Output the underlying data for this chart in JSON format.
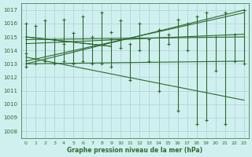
{
  "xlabel": "Graphe pression niveau de la mer (hPa)",
  "ylim": [
    1007.5,
    1017.5
  ],
  "xlim": [
    -0.5,
    23.5
  ],
  "yticks": [
    1008,
    1009,
    1010,
    1011,
    1012,
    1013,
    1014,
    1015,
    1016,
    1017
  ],
  "xticks": [
    0,
    1,
    2,
    3,
    4,
    5,
    6,
    7,
    8,
    9,
    10,
    11,
    12,
    13,
    14,
    15,
    16,
    17,
    18,
    19,
    20,
    21,
    22,
    23
  ],
  "bg_color": "#d0f0f0",
  "grid_color": "#b0d8d8",
  "line_color": "#2d6a2d",
  "bar_high": [
    1016.0,
    1015.8,
    1016.2,
    1014.8,
    1016.3,
    1015.3,
    1016.5,
    1015.0,
    1016.8,
    1014.8,
    1016.2,
    1014.5,
    1016.0,
    1014.8,
    1015.5,
    1015.2,
    1016.3,
    1016.0,
    1016.5,
    1016.8,
    1015.0,
    1016.8,
    1015.2,
    1017.0
  ],
  "bar_low": [
    1012.8,
    1013.0,
    1013.2,
    1013.0,
    1013.2,
    1013.0,
    1013.2,
    1013.0,
    1013.0,
    1012.8,
    1014.2,
    1011.8,
    1014.0,
    1013.2,
    1011.0,
    1014.5,
    1009.5,
    1014.0,
    1008.5,
    1008.8,
    1012.5,
    1008.5,
    1013.2,
    1013.0
  ],
  "trend_line1_x": [
    0,
    23
  ],
  "trend_line1_y": [
    1013.0,
    1017.0
  ],
  "trend_line2_x": [
    0,
    23
  ],
  "trend_line2_y": [
    1015.0,
    1015.0
  ],
  "trend_line3_x": [
    0,
    9,
    23
  ],
  "trend_line3_y": [
    1015.0,
    1014.3,
    1013.2
  ],
  "trend_line4_x": [
    0,
    9,
    23
  ],
  "trend_line4_y": [
    1013.0,
    1013.8,
    1010.3
  ],
  "trend_line5_x": [
    0,
    9,
    23
  ],
  "trend_line5_y": [
    1013.5,
    1013.5,
    1014.8
  ],
  "dot_x": [
    0,
    1,
    2,
    3,
    4,
    5,
    6,
    7,
    8,
    9,
    10,
    11,
    12,
    13,
    14,
    15,
    16,
    17,
    18,
    19,
    20,
    21,
    22,
    23
  ],
  "dot_high": [
    1016.0,
    1015.8,
    1016.2,
    1014.8,
    1016.3,
    1015.3,
    1016.5,
    1015.0,
    1016.8,
    1014.8,
    1016.2,
    1014.5,
    1016.0,
    1014.8,
    1015.5,
    1015.2,
    1016.3,
    1016.0,
    1016.5,
    1016.8,
    1015.0,
    1016.8,
    1015.2,
    1017.0
  ],
  "dot_low": [
    1012.8,
    1013.0,
    1013.2,
    1013.0,
    1013.2,
    1013.0,
    1013.2,
    1013.0,
    1013.0,
    1012.8,
    1014.2,
    1011.8,
    1014.0,
    1013.2,
    1011.0,
    1014.5,
    1009.5,
    1014.0,
    1008.5,
    1008.8,
    1012.5,
    1008.5,
    1013.2,
    1013.0
  ],
  "font_color": "#2d6a2d"
}
